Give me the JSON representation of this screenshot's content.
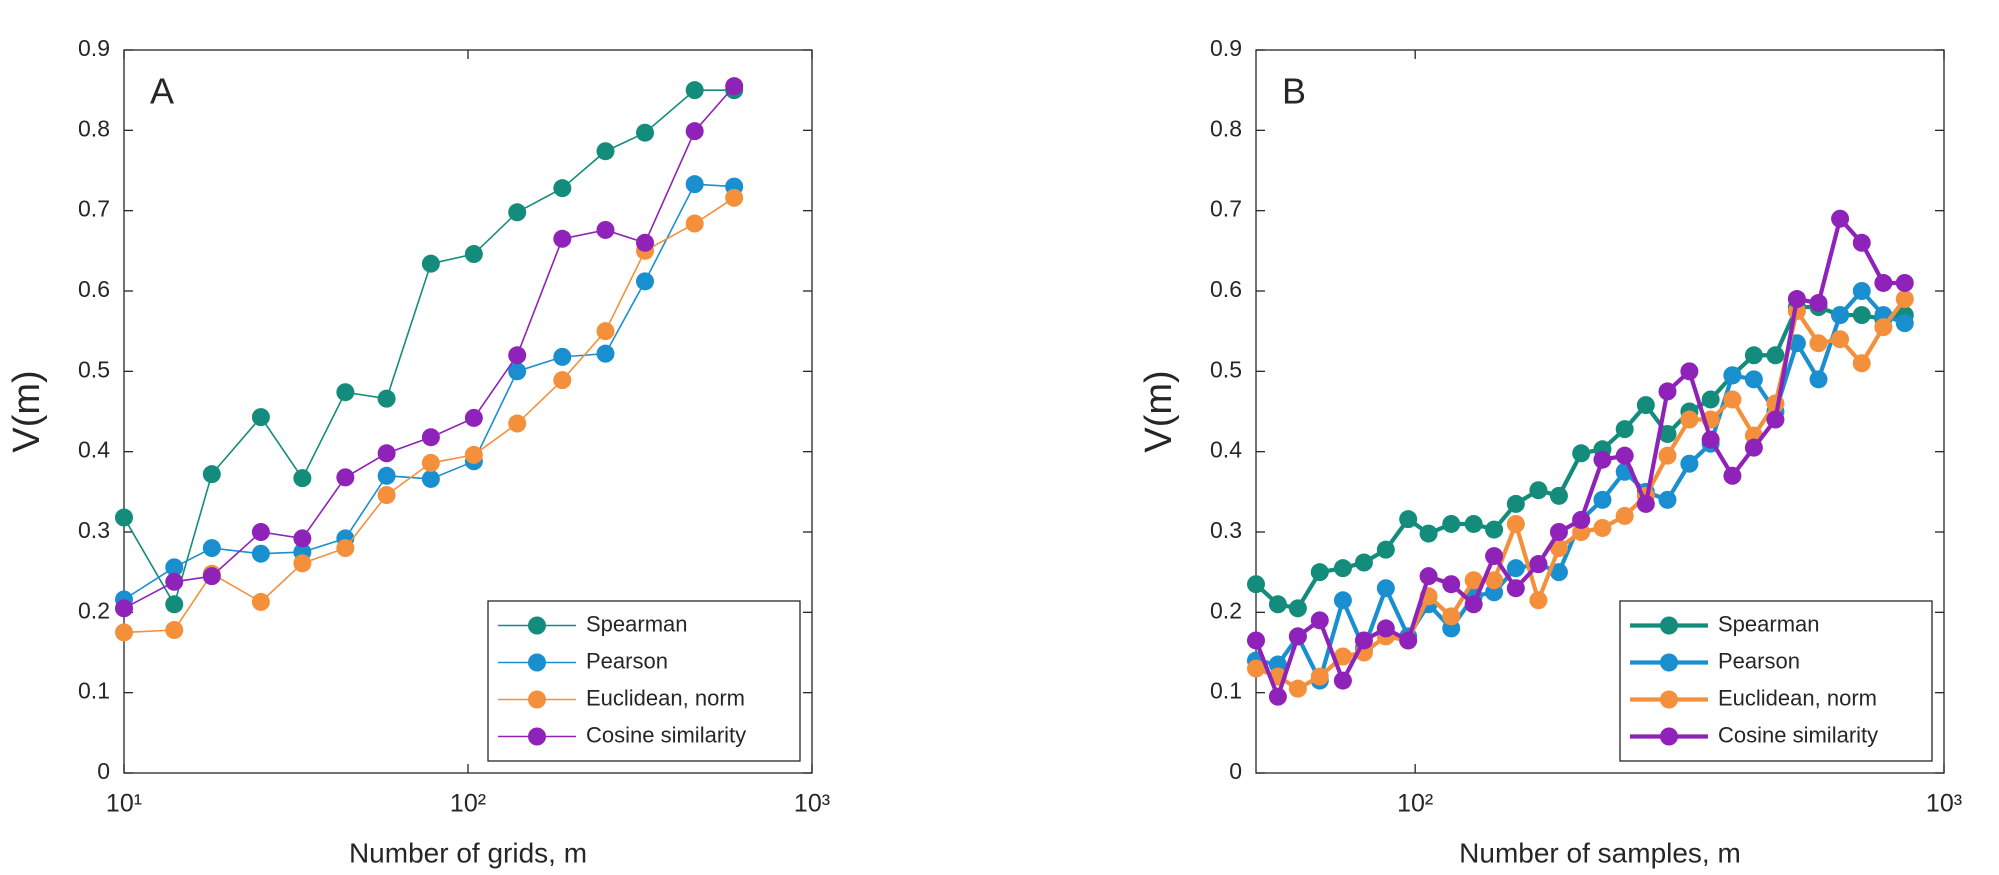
{
  "chart_data": [
    {
      "type": "line",
      "annotation": "A",
      "xlabel": "Number of grids, m",
      "ylabel": "V(m)",
      "x": [
        10,
        14,
        18,
        25,
        33,
        44,
        58,
        78,
        104,
        139,
        188,
        251,
        327,
        456,
        594
      ],
      "xscale": "log",
      "xlim": [
        10,
        1000
      ],
      "xticks": [
        {
          "value": 10,
          "label": "10¹"
        },
        {
          "value": 100,
          "label": "10²"
        },
        {
          "value": 1000,
          "label": "10³"
        }
      ],
      "ylim": [
        0,
        0.9
      ],
      "yticks": [
        0,
        0.1,
        0.2,
        0.3,
        0.4,
        0.5,
        0.6,
        0.7,
        0.8,
        0.9
      ],
      "legend": "lower right",
      "series": [
        {
          "name": "Spearman",
          "color": "#138c7c",
          "values": [
            0.318,
            0.21,
            0.372,
            0.443,
            0.367,
            0.474,
            0.466,
            0.634,
            0.646,
            0.698,
            0.728,
            0.774,
            0.797,
            0.85,
            0.85
          ]
        },
        {
          "name": "Pearson",
          "color": "#1a8fd0",
          "values": [
            0.216,
            0.256,
            0.28,
            0.273,
            0.275,
            0.292,
            0.37,
            0.366,
            0.388,
            0.5,
            0.518,
            0.522,
            0.612,
            0.733,
            0.73
          ]
        },
        {
          "name": "Euclidean, norm",
          "color": "#f4903c",
          "values": [
            0.175,
            0.178,
            0.248,
            0.213,
            0.261,
            0.28,
            0.346,
            0.386,
            0.396,
            0.435,
            0.489,
            0.55,
            0.65,
            0.684,
            0.716
          ]
        },
        {
          "name": "Cosine similarity",
          "color": "#8f22b8",
          "values": [
            0.205,
            0.238,
            0.245,
            0.3,
            0.292,
            0.368,
            0.398,
            0.418,
            0.442,
            0.52,
            0.665,
            0.676,
            0.66,
            0.799,
            0.855
          ]
        }
      ]
    },
    {
      "type": "line",
      "annotation": "B",
      "xlabel": "Number of samples, m",
      "ylabel": "V(m)",
      "x": [
        50,
        55,
        60,
        66,
        73,
        80,
        88,
        97,
        106,
        117,
        129,
        141,
        155,
        171,
        187,
        206,
        226,
        249,
        273,
        300,
        330,
        362,
        398,
        437,
        480,
        527,
        579,
        636,
        699,
        768,
        843
      ],
      "xscale": "log",
      "xlim": [
        50,
        1000
      ],
      "xticks": [
        {
          "value": 100,
          "label": "10²"
        },
        {
          "value": 1000,
          "label": "10³"
        }
      ],
      "ylim": [
        0,
        0.9
      ],
      "yticks": [
        0,
        0.1,
        0.2,
        0.3,
        0.4,
        0.5,
        0.6,
        0.7,
        0.8,
        0.9
      ],
      "legend": "lower right",
      "series": [
        {
          "name": "Spearman",
          "color": "#138c7c",
          "values": [
            0.235,
            0.21,
            0.205,
            0.25,
            0.255,
            0.262,
            0.278,
            0.316,
            0.298,
            0.31,
            0.31,
            0.303,
            0.335,
            0.352,
            0.345,
            0.398,
            0.403,
            0.428,
            0.458,
            0.422,
            0.45,
            0.465,
            0.495,
            0.52,
            0.52,
            0.58,
            0.58,
            0.57,
            0.57,
            0.565,
            0.57
          ]
        },
        {
          "name": "Pearson",
          "color": "#1a8fd0",
          "values": [
            0.14,
            0.135,
            0.17,
            0.115,
            0.215,
            0.155,
            0.23,
            0.17,
            0.21,
            0.18,
            0.22,
            0.225,
            0.255,
            0.26,
            0.25,
            0.315,
            0.34,
            0.375,
            0.35,
            0.34,
            0.385,
            0.41,
            0.495,
            0.49,
            0.45,
            0.535,
            0.49,
            0.57,
            0.6,
            0.57,
            0.56
          ]
        },
        {
          "name": "Euclidean, norm",
          "color": "#f4903c",
          "values": [
            0.13,
            0.12,
            0.105,
            0.12,
            0.145,
            0.15,
            0.17,
            0.165,
            0.22,
            0.195,
            0.24,
            0.24,
            0.31,
            0.215,
            0.28,
            0.3,
            0.305,
            0.32,
            0.345,
            0.395,
            0.44,
            0.44,
            0.465,
            0.42,
            0.46,
            0.575,
            0.535,
            0.54,
            0.51,
            0.555,
            0.59
          ]
        },
        {
          "name": "Cosine similarity",
          "color": "#8f22b8",
          "values": [
            0.165,
            0.095,
            0.17,
            0.19,
            0.115,
            0.165,
            0.18,
            0.165,
            0.245,
            0.235,
            0.21,
            0.27,
            0.23,
            0.26,
            0.3,
            0.315,
            0.39,
            0.395,
            0.335,
            0.475,
            0.5,
            0.415,
            0.37,
            0.405,
            0.44,
            0.59,
            0.585,
            0.69,
            0.66,
            0.61,
            0.61
          ]
        }
      ]
    }
  ]
}
